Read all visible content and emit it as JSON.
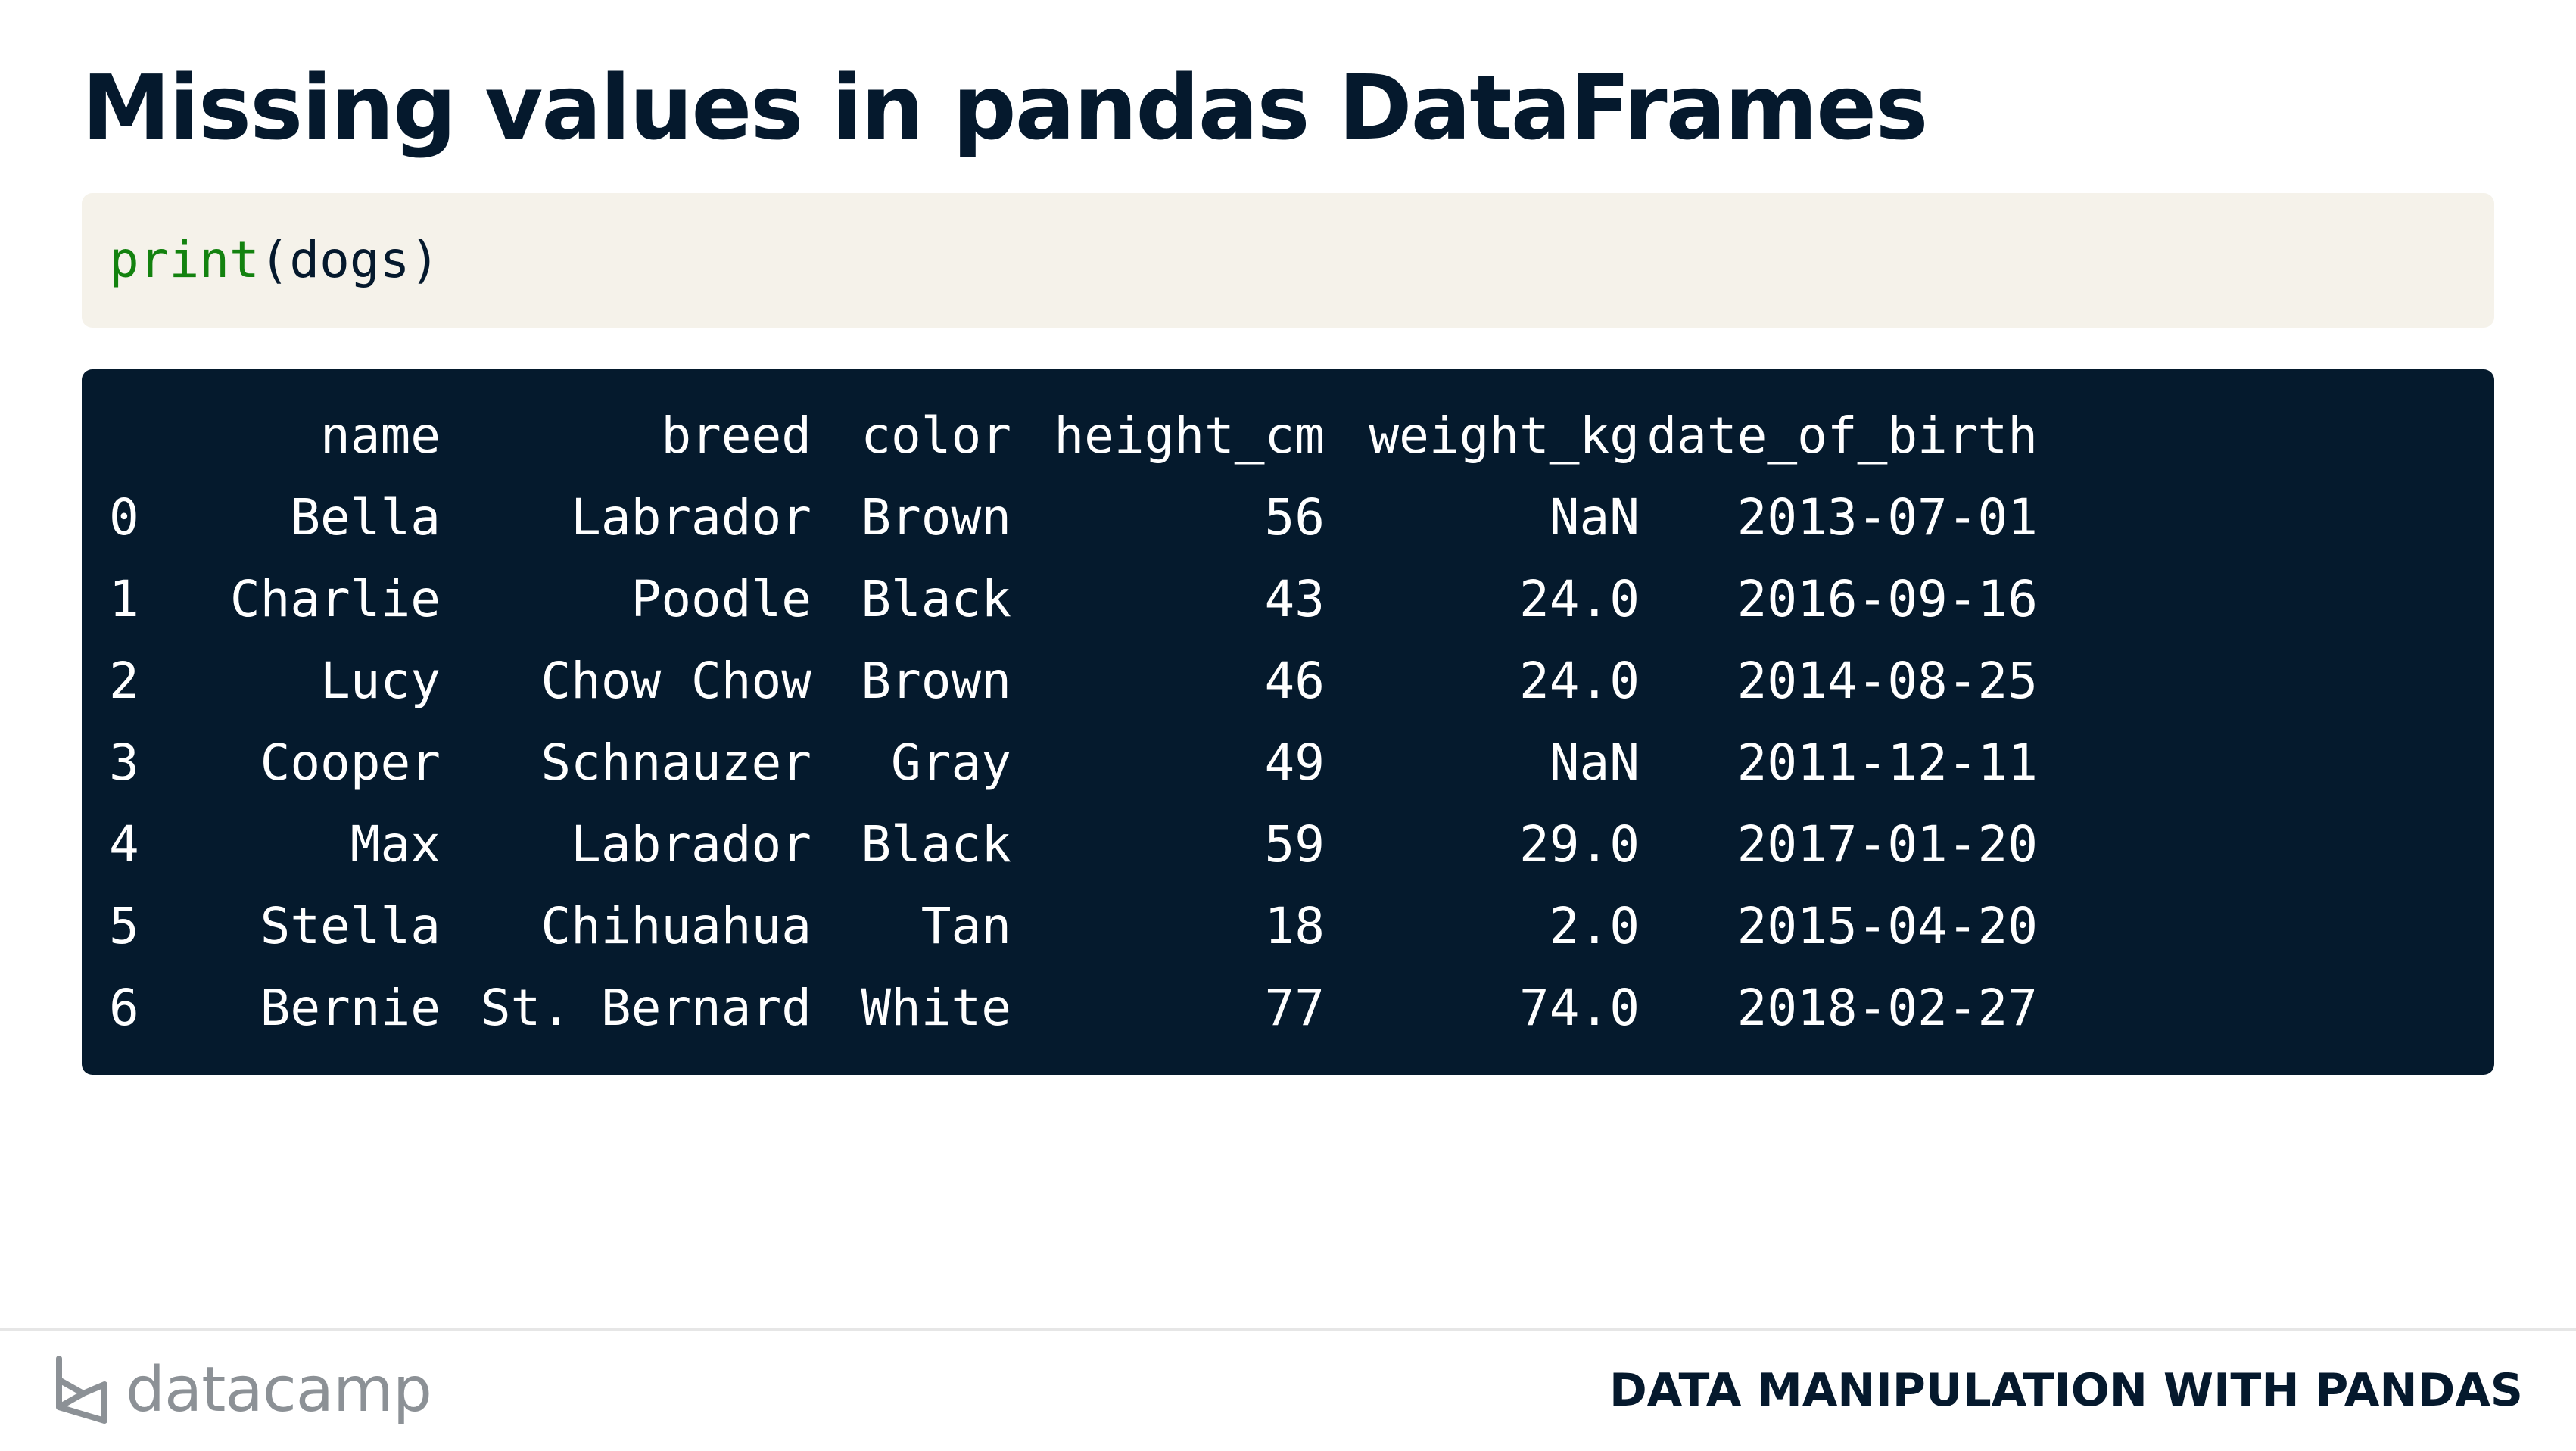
{
  "slide": {
    "title": "Missing values in pandas DataFrames"
  },
  "code": {
    "function": "print",
    "args": "(dogs)"
  },
  "output": {
    "columns": [
      "name",
      "breed",
      "color",
      "height_cm",
      "weight_kg",
      "date_of_birth"
    ],
    "rows": [
      {
        "index": "0",
        "name": "Bella",
        "breed": "Labrador",
        "color": "Brown",
        "height_cm": "56",
        "weight_kg": "NaN",
        "date_of_birth": "2013-07-01"
      },
      {
        "index": "1",
        "name": "Charlie",
        "breed": "Poodle",
        "color": "Black",
        "height_cm": "43",
        "weight_kg": "24.0",
        "date_of_birth": "2016-09-16"
      },
      {
        "index": "2",
        "name": "Lucy",
        "breed": "Chow Chow",
        "color": "Brown",
        "height_cm": "46",
        "weight_kg": "24.0",
        "date_of_birth": "2014-08-25"
      },
      {
        "index": "3",
        "name": "Cooper",
        "breed": "Schnauzer",
        "color": "Gray",
        "height_cm": "49",
        "weight_kg": "NaN",
        "date_of_birth": "2011-12-11"
      },
      {
        "index": "4",
        "name": "Max",
        "breed": "Labrador",
        "color": "Black",
        "height_cm": "59",
        "weight_kg": "29.0",
        "date_of_birth": "2017-01-20"
      },
      {
        "index": "5",
        "name": "Stella",
        "breed": "Chihuahua",
        "color": "Tan",
        "height_cm": "18",
        "weight_kg": "2.0",
        "date_of_birth": "2015-04-20"
      },
      {
        "index": "6",
        "name": "Bernie",
        "breed": "St. Bernard",
        "color": "White",
        "height_cm": "77",
        "weight_kg": "74.0",
        "date_of_birth": "2018-02-27"
      }
    ]
  },
  "footer": {
    "logo_text": "datacamp",
    "course_name": "DATA MANIPULATION WITH PANDAS"
  },
  "colors": {
    "title": "#05192d",
    "code_bg": "#f5f2ea",
    "keyword": "#13820f",
    "output_bg": "#051a2d",
    "logo_gray": "#8c9196"
  }
}
